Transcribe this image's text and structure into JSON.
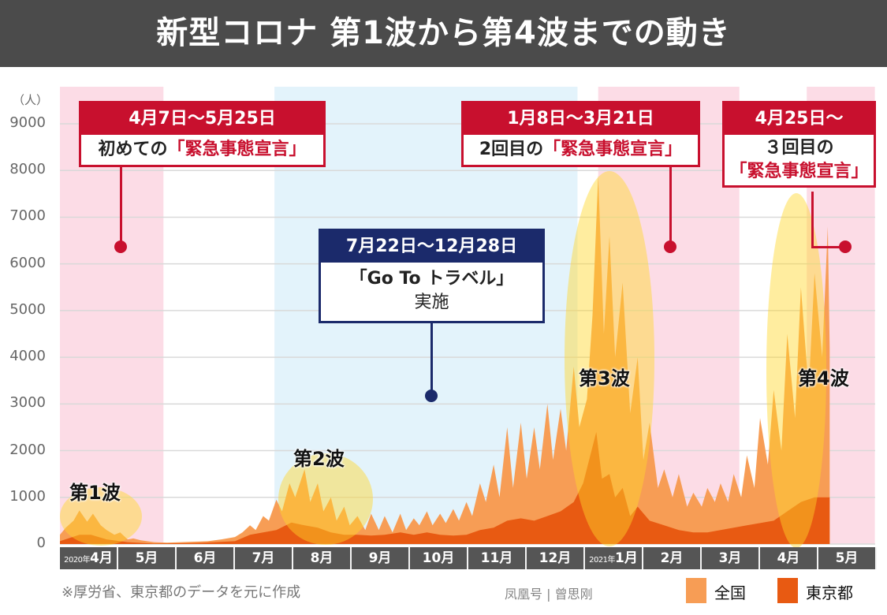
{
  "title": "新型コロナ 第1波から第4波までの動き",
  "colors": {
    "national": "#f79d55",
    "tokyo": "#e85a12",
    "emergency_bg": "#fcdce6",
    "goto_bg": "#e3f3fb",
    "wave_highlight": "#ffd62a",
    "callout_red": "#c8102e",
    "callout_navy": "#1b2a6b"
  },
  "callouts": {
    "first": {
      "period": "4月7日～5月25日",
      "prefix": "初めての",
      "name": "「緊急事態宣言」"
    },
    "second": {
      "period": "1月8日～3月21日",
      "prefix": "2回目の",
      "name": "「緊急事態宣言」"
    },
    "third": {
      "period": "4月25日～",
      "prefix": "３回目の",
      "name": "「緊急事態宣言」"
    },
    "goto": {
      "period": "7月22日～12月28日",
      "name": "「Go To トラベル」",
      "suffix": "実施"
    }
  },
  "waves": [
    "第1波",
    "第2波",
    "第3波",
    "第4波"
  ],
  "note": "※厚労省、東京都のデータを元に作成",
  "watermark": "凤凰号 | 曾思刚",
  "chart_data": {
    "type": "area",
    "ylabel": "（人）",
    "ylim": [
      0,
      9000
    ],
    "yticks": [
      "0",
      "1000",
      "2000",
      "3000",
      "4000",
      "5000",
      "6000",
      "7000",
      "8000",
      "9000"
    ],
    "xticks": [
      {
        "year": "2020年",
        "label": "4月"
      },
      {
        "label": "5月"
      },
      {
        "label": "6月"
      },
      {
        "label": "7月"
      },
      {
        "label": "8月"
      },
      {
        "label": "9月"
      },
      {
        "label": "10月"
      },
      {
        "label": "11月"
      },
      {
        "label": "12月"
      },
      {
        "year": "2021年",
        "label": "1月"
      },
      {
        "label": "2月"
      },
      {
        "label": "3月"
      },
      {
        "label": "4月"
      },
      {
        "label": "5月"
      }
    ],
    "xlim": [
      "2020-04-01",
      "2021-05-31"
    ],
    "grid": true,
    "legend": "bottom-right",
    "shaded_periods": [
      {
        "kind": "emergency",
        "start": "2020-04-07",
        "end": "2020-05-25"
      },
      {
        "kind": "goto",
        "start": "2020-07-22",
        "end": "2020-12-28"
      },
      {
        "kind": "emergency",
        "start": "2021-01-08",
        "end": "2021-03-21"
      },
      {
        "kind": "emergency",
        "start": "2021-04-25",
        "end": "2021-05-31"
      }
    ],
    "series": [
      {
        "name": "全国",
        "points": [
          [
            "2020-04-01",
            200
          ],
          [
            "2020-04-04",
            350
          ],
          [
            "2020-04-08",
            500
          ],
          [
            "2020-04-11",
            720
          ],
          [
            "2020-04-15",
            480
          ],
          [
            "2020-04-18",
            650
          ],
          [
            "2020-04-22",
            400
          ],
          [
            "2020-04-25",
            300
          ],
          [
            "2020-04-29",
            200
          ],
          [
            "2020-05-02",
            250
          ],
          [
            "2020-05-06",
            100
          ],
          [
            "2020-05-09",
            120
          ],
          [
            "2020-05-13",
            80
          ],
          [
            "2020-05-20",
            40
          ],
          [
            "2020-05-27",
            30
          ],
          [
            "2020-06-03",
            40
          ],
          [
            "2020-06-10",
            50
          ],
          [
            "2020-06-17",
            60
          ],
          [
            "2020-06-24",
            100
          ],
          [
            "2020-07-01",
            150
          ],
          [
            "2020-07-05",
            250
          ],
          [
            "2020-07-09",
            400
          ],
          [
            "2020-07-12",
            300
          ],
          [
            "2020-07-16",
            600
          ],
          [
            "2020-07-19",
            500
          ],
          [
            "2020-07-23",
            950
          ],
          [
            "2020-07-26",
            700
          ],
          [
            "2020-07-30",
            1300
          ],
          [
            "2020-08-02",
            1000
          ],
          [
            "2020-08-07",
            1600
          ],
          [
            "2020-08-10",
            900
          ],
          [
            "2020-08-14",
            1300
          ],
          [
            "2020-08-17",
            700
          ],
          [
            "2020-08-21",
            1000
          ],
          [
            "2020-08-24",
            500
          ],
          [
            "2020-08-28",
            800
          ],
          [
            "2020-08-31",
            400
          ],
          [
            "2020-09-04",
            600
          ],
          [
            "2020-09-08",
            300
          ],
          [
            "2020-09-11",
            650
          ],
          [
            "2020-09-15",
            300
          ],
          [
            "2020-09-18",
            600
          ],
          [
            "2020-09-22",
            250
          ],
          [
            "2020-09-26",
            650
          ],
          [
            "2020-09-29",
            300
          ],
          [
            "2020-10-03",
            550
          ],
          [
            "2020-10-06",
            400
          ],
          [
            "2020-10-10",
            700
          ],
          [
            "2020-10-13",
            400
          ],
          [
            "2020-10-17",
            650
          ],
          [
            "2020-10-20",
            450
          ],
          [
            "2020-10-24",
            750
          ],
          [
            "2020-10-27",
            500
          ],
          [
            "2020-10-31",
            900
          ],
          [
            "2020-11-03",
            600
          ],
          [
            "2020-11-07",
            1300
          ],
          [
            "2020-11-10",
            900
          ],
          [
            "2020-11-14",
            1700
          ],
          [
            "2020-11-17",
            1000
          ],
          [
            "2020-11-21",
            2500
          ],
          [
            "2020-11-24",
            1200
          ],
          [
            "2020-11-28",
            2600
          ],
          [
            "2020-12-01",
            1400
          ],
          [
            "2020-12-05",
            2500
          ],
          [
            "2020-12-08",
            1600
          ],
          [
            "2020-12-12",
            3000
          ],
          [
            "2020-12-15",
            1800
          ],
          [
            "2020-12-19",
            2900
          ],
          [
            "2020-12-22",
            2000
          ],
          [
            "2020-12-26",
            3800
          ],
          [
            "2020-12-29",
            2500
          ],
          [
            "2021-01-02",
            3100
          ],
          [
            "2021-01-05",
            4900
          ],
          [
            "2021-01-08",
            7900
          ],
          [
            "2021-01-11",
            4500
          ],
          [
            "2021-01-14",
            6600
          ],
          [
            "2021-01-17",
            4000
          ],
          [
            "2021-01-21",
            5600
          ],
          [
            "2021-01-25",
            2800
          ],
          [
            "2021-01-29",
            4000
          ],
          [
            "2021-02-01",
            1800
          ],
          [
            "2021-02-04",
            2600
          ],
          [
            "2021-02-08",
            1200
          ],
          [
            "2021-02-11",
            1600
          ],
          [
            "2021-02-15",
            1000
          ],
          [
            "2021-02-18",
            1500
          ],
          [
            "2021-02-22",
            800
          ],
          [
            "2021-02-25",
            1100
          ],
          [
            "2021-03-01",
            800
          ],
          [
            "2021-03-04",
            1200
          ],
          [
            "2021-03-08",
            900
          ],
          [
            "2021-03-11",
            1300
          ],
          [
            "2021-03-15",
            900
          ],
          [
            "2021-03-18",
            1500
          ],
          [
            "2021-03-22",
            1000
          ],
          [
            "2021-03-25",
            1900
          ],
          [
            "2021-03-29",
            1200
          ],
          [
            "2021-04-01",
            2700
          ],
          [
            "2021-04-05",
            1700
          ],
          [
            "2021-04-08",
            3300
          ],
          [
            "2021-04-12",
            2000
          ],
          [
            "2021-04-15",
            4500
          ],
          [
            "2021-04-19",
            2700
          ],
          [
            "2021-04-22",
            5500
          ],
          [
            "2021-04-26",
            3300
          ],
          [
            "2021-04-29",
            5800
          ],
          [
            "2021-05-03",
            4000
          ],
          [
            "2021-05-06",
            6800
          ],
          [
            "2021-05-07",
            4200
          ]
        ]
      },
      {
        "name": "東京都",
        "points": [
          [
            "2020-04-01",
            60
          ],
          [
            "2020-04-11",
            200
          ],
          [
            "2020-04-17",
            200
          ],
          [
            "2020-04-25",
            100
          ],
          [
            "2020-05-06",
            40
          ],
          [
            "2020-05-20",
            10
          ],
          [
            "2020-06-10",
            20
          ],
          [
            "2020-07-01",
            60
          ],
          [
            "2020-07-09",
            200
          ],
          [
            "2020-07-16",
            250
          ],
          [
            "2020-07-23",
            300
          ],
          [
            "2020-07-31",
            460
          ],
          [
            "2020-08-07",
            400
          ],
          [
            "2020-08-14",
            350
          ],
          [
            "2020-08-21",
            250
          ],
          [
            "2020-08-28",
            200
          ],
          [
            "2020-09-04",
            200
          ],
          [
            "2020-09-11",
            180
          ],
          [
            "2020-09-18",
            200
          ],
          [
            "2020-09-26",
            250
          ],
          [
            "2020-10-03",
            200
          ],
          [
            "2020-10-10",
            250
          ],
          [
            "2020-10-17",
            200
          ],
          [
            "2020-10-24",
            180
          ],
          [
            "2020-10-31",
            200
          ],
          [
            "2020-11-07",
            300
          ],
          [
            "2020-11-14",
            350
          ],
          [
            "2020-11-21",
            500
          ],
          [
            "2020-11-28",
            550
          ],
          [
            "2020-12-05",
            500
          ],
          [
            "2020-12-12",
            600
          ],
          [
            "2020-12-19",
            700
          ],
          [
            "2020-12-26",
            900
          ],
          [
            "2020-12-31",
            1300
          ],
          [
            "2021-01-07",
            2400
          ],
          [
            "2021-01-10",
            1400
          ],
          [
            "2021-01-14",
            1500
          ],
          [
            "2021-01-17",
            1000
          ],
          [
            "2021-01-21",
            1200
          ],
          [
            "2021-01-25",
            600
          ],
          [
            "2021-01-29",
            800
          ],
          [
            "2021-02-04",
            500
          ],
          [
            "2021-02-11",
            400
          ],
          [
            "2021-02-18",
            300
          ],
          [
            "2021-02-25",
            250
          ],
          [
            "2021-03-04",
            250
          ],
          [
            "2021-03-11",
            300
          ],
          [
            "2021-03-18",
            350
          ],
          [
            "2021-03-25",
            400
          ],
          [
            "2021-04-01",
            450
          ],
          [
            "2021-04-08",
            500
          ],
          [
            "2021-04-15",
            700
          ],
          [
            "2021-04-22",
            900
          ],
          [
            "2021-04-29",
            1000
          ],
          [
            "2021-05-07",
            1000
          ]
        ]
      }
    ]
  }
}
